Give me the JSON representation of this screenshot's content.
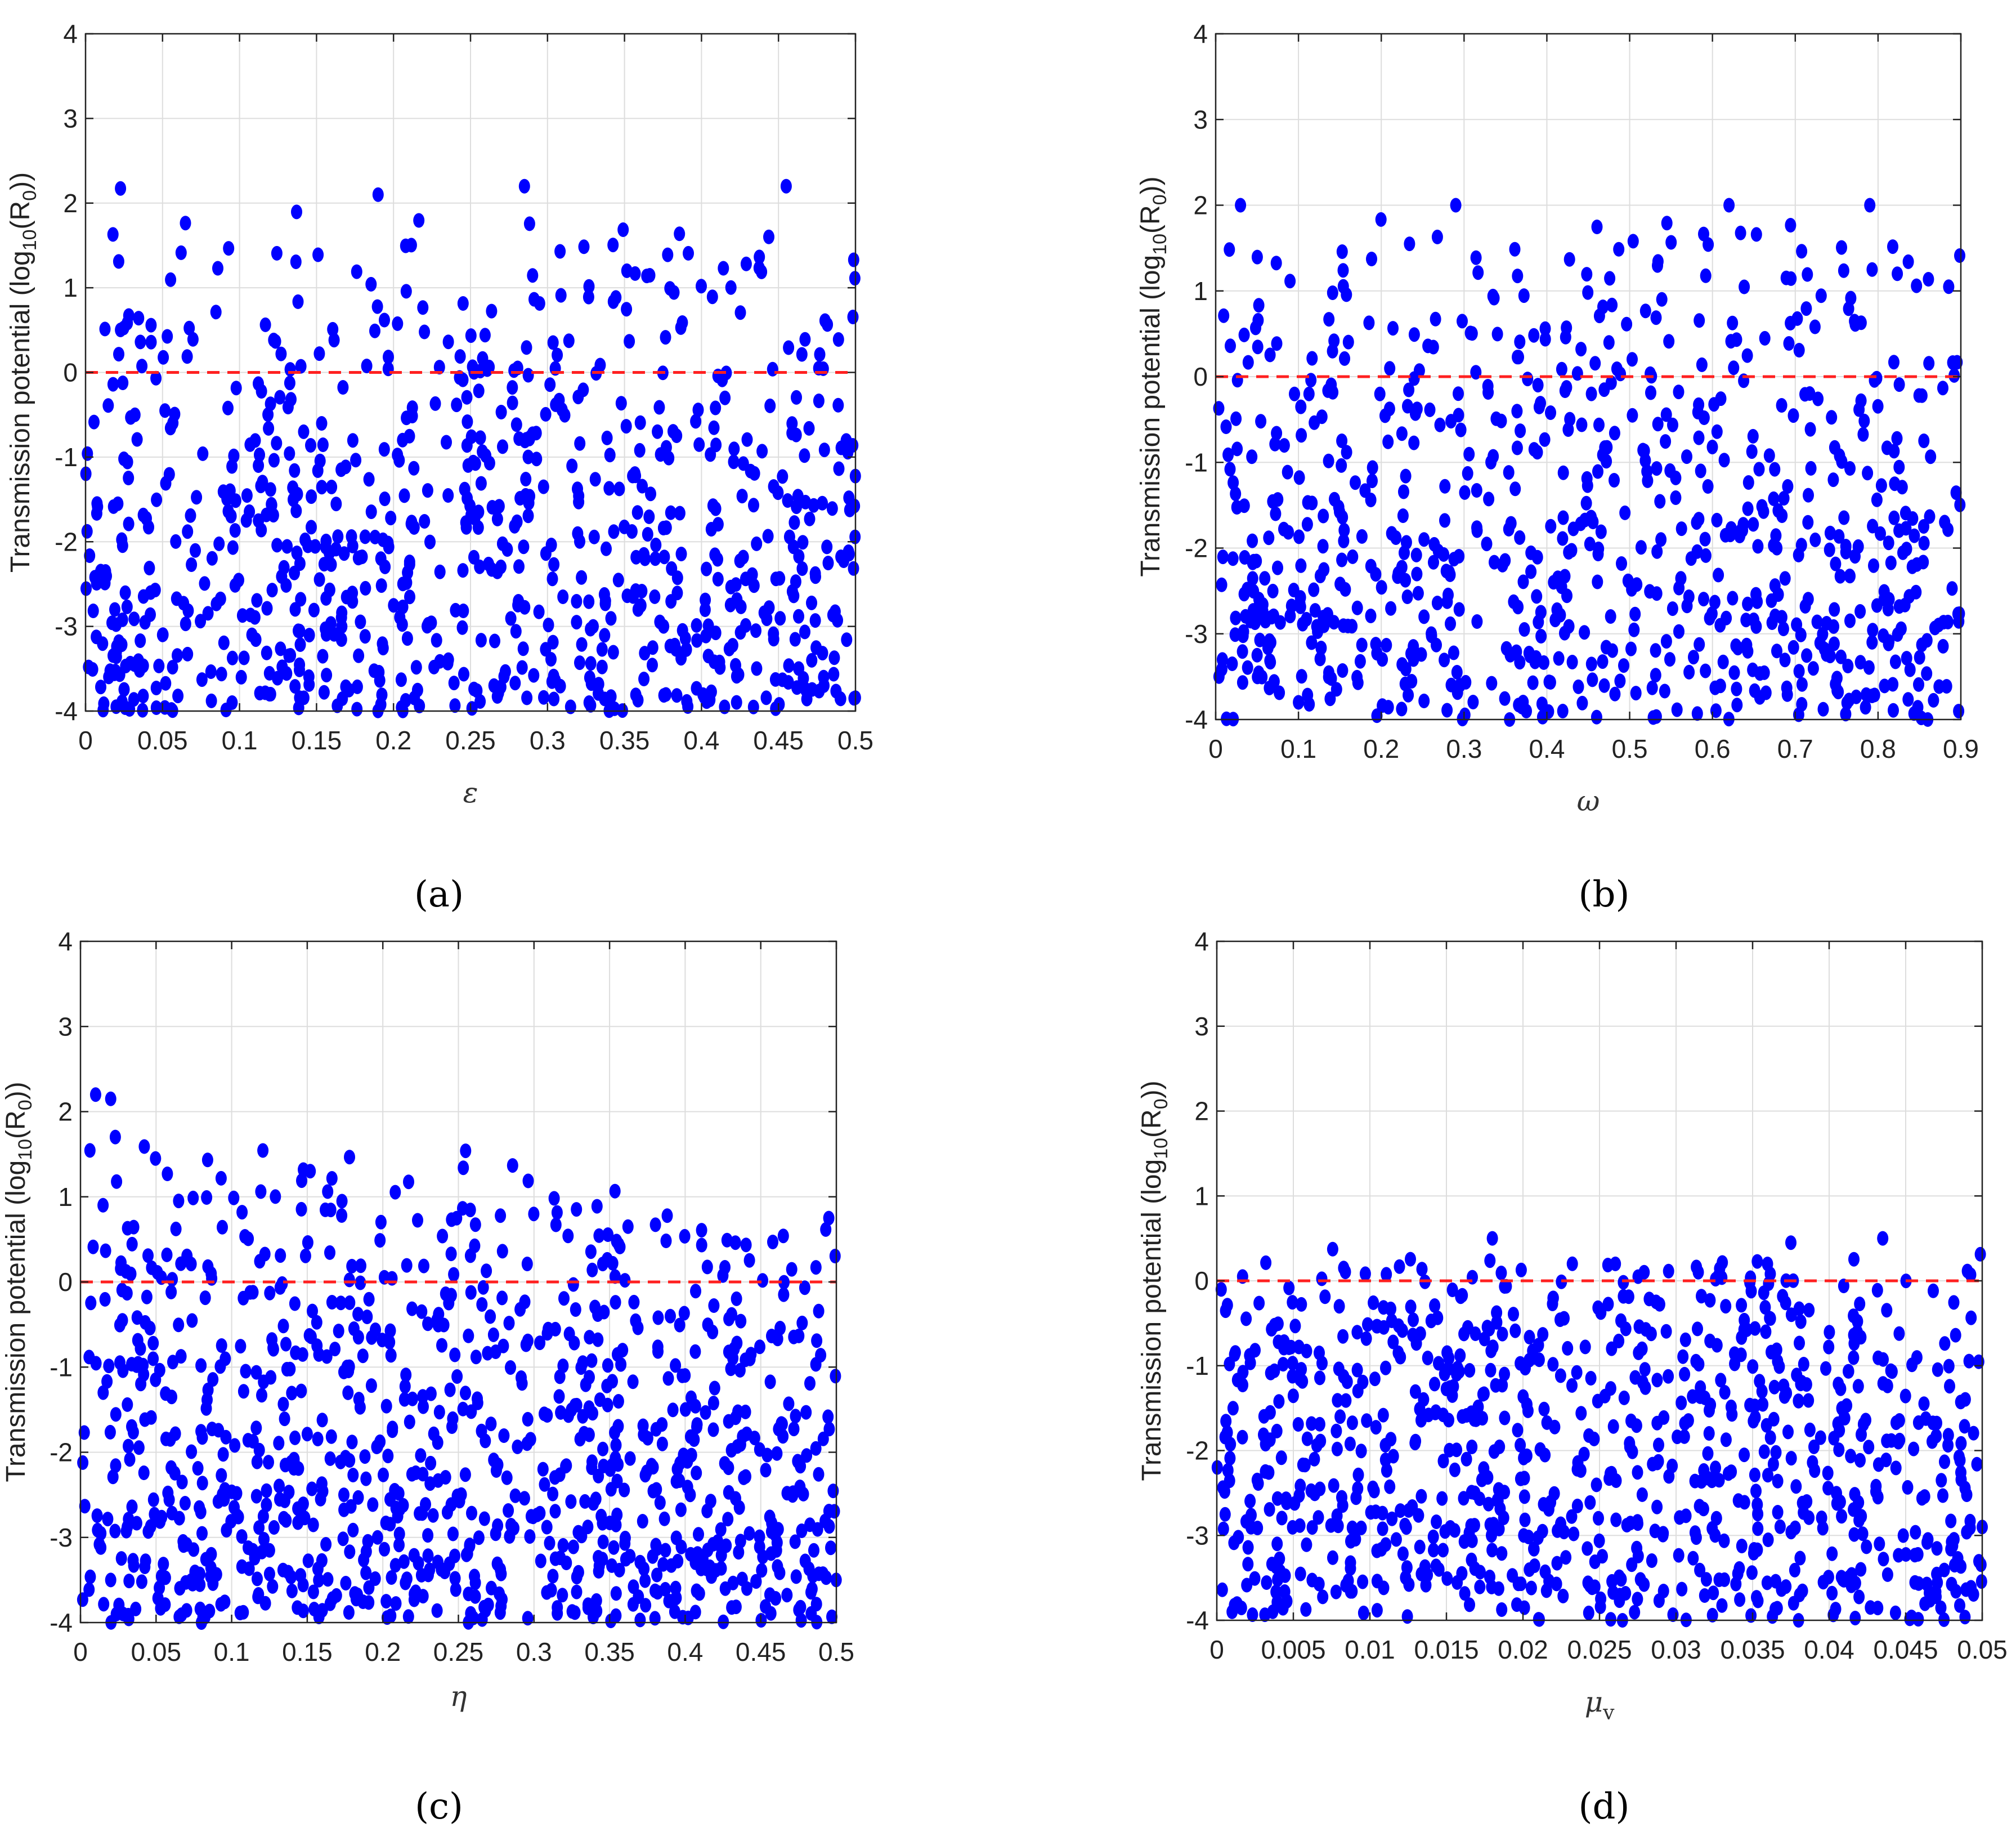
{
  "colors": {
    "points": "#0000ff",
    "threshold": "#ff2020",
    "grid": "#dddddd",
    "axes": "#222222"
  },
  "chart_data": [
    {
      "panel": "(a)",
      "type": "scatter",
      "title": "",
      "ylabel": "Transmission potential (log10(R0))",
      "ylabel_main": "Transmission potential (log",
      "ylabel_sub1": "10",
      "ylabel_mid": "(R",
      "ylabel_sub2": "0",
      "ylabel_end": "))",
      "xlabel": "ε",
      "xlabel_sub": "",
      "xlim": [
        0,
        0.5
      ],
      "ylim": [
        -4,
        4
      ],
      "xticks": [
        0,
        0.05,
        0.1,
        0.15,
        0.2,
        0.25,
        0.3,
        0.35,
        0.4,
        0.45,
        0.5
      ],
      "xtick_labels": [
        "0",
        "0.05",
        "0.1",
        "0.15",
        "0.2",
        "0.25",
        "0.3",
        "0.35",
        "0.4",
        "0.45",
        "0.5"
      ],
      "yticks": [
        -4,
        -3,
        -2,
        -1,
        0,
        1,
        2,
        3,
        4
      ],
      "ytick_labels": [
        "-4",
        "-3",
        "-2",
        "-1",
        "0",
        "1",
        "2",
        "3",
        "4"
      ],
      "grid": true,
      "reference_line": {
        "y": 0,
        "style": "dashed"
      },
      "sample": {
        "count": 850,
        "seed": 11,
        "upper": [
          2.05,
          2.05
        ],
        "upper_jitter": 0.15,
        "lower": -4.0,
        "power": 0.55
      },
      "points": [
        [
          0.19,
          2.1
        ],
        [
          0.285,
          2.2
        ],
        [
          0.455,
          2.2
        ],
        [
          0.315,
          -3.95
        ],
        [
          0.415,
          -3.95
        ],
        [
          0.02,
          -3.3
        ],
        [
          0.05,
          -3.1
        ],
        [
          0.31,
          -2.65
        ],
        [
          0.37,
          -2.2
        ]
      ]
    },
    {
      "panel": "(b)",
      "type": "scatter",
      "title": "",
      "ylabel": "Transmission potential (log10(R0))",
      "ylabel_main": "Transmission potential (log",
      "ylabel_sub1": "10",
      "ylabel_mid": "(R",
      "ylabel_sub2": "0",
      "ylabel_end": "))",
      "xlabel": "ω",
      "xlabel_sub": "",
      "xlim": [
        0,
        0.9
      ],
      "ylim": [
        -4,
        4
      ],
      "xticks": [
        0,
        0.1,
        0.2,
        0.3,
        0.4,
        0.5,
        0.6,
        0.7,
        0.8,
        0.9
      ],
      "xtick_labels": [
        "0",
        "0.1",
        "0.2",
        "0.3",
        "0.4",
        "0.5",
        "0.6",
        "0.7",
        "0.8",
        "0.9"
      ],
      "yticks": [
        -4,
        -3,
        -2,
        -1,
        0,
        1,
        2,
        3,
        4
      ],
      "ytick_labels": [
        "-4",
        "-3",
        "-2",
        "-1",
        "0",
        "1",
        "2",
        "3",
        "4"
      ],
      "grid": true,
      "reference_line": {
        "y": 0,
        "style": "dashed"
      },
      "sample": {
        "count": 800,
        "seed": 23,
        "upper": [
          1.95,
          1.95
        ],
        "upper_jitter": 0.1,
        "lower": -4.0,
        "power": 0.6
      },
      "points": [
        [
          0.03,
          2.0
        ],
        [
          0.29,
          2.0
        ],
        [
          0.62,
          2.0
        ],
        [
          0.79,
          2.0
        ],
        [
          0.355,
          -4.0
        ],
        [
          0.86,
          -4.0
        ],
        [
          0.02,
          -3.35
        ],
        [
          0.05,
          -3.25
        ],
        [
          0.1,
          -3.8
        ]
      ]
    },
    {
      "panel": "(c)",
      "type": "scatter",
      "title": "",
      "ylabel": "Transmission potential (log10(R0))",
      "ylabel_main": "Transmission potential (log",
      "ylabel_sub1": "10",
      "ylabel_mid": "(R",
      "ylabel_sub2": "0",
      "ylabel_end": "))",
      "xlabel": "η",
      "xlabel_sub": "",
      "xlim": [
        0,
        0.5
      ],
      "ylim": [
        -4,
        4
      ],
      "xticks": [
        0,
        0.05,
        0.1,
        0.15,
        0.2,
        0.25,
        0.3,
        0.35,
        0.4,
        0.45,
        0.5
      ],
      "xtick_labels": [
        "0",
        "0.05",
        "0.1",
        "0.15",
        "0.2",
        "0.25",
        "0.3",
        "0.35",
        "0.4",
        "0.45",
        "0.5"
      ],
      "yticks": [
        -4,
        -3,
        -2,
        -1,
        0,
        1,
        2,
        3,
        4
      ],
      "ytick_labels": [
        "-4",
        "-3",
        "-2",
        "-1",
        "0",
        "1",
        "2",
        "3",
        "4"
      ],
      "grid": true,
      "reference_line": {
        "y": 0,
        "style": "dashed"
      },
      "sample": {
        "count": 1000,
        "seed": 37,
        "upper": [
          2.15,
          0.75
        ],
        "upper_jitter": 0.08,
        "lower": -4.0,
        "power": 0.55
      },
      "points": [
        [
          0.01,
          2.2
        ],
        [
          0.02,
          2.15
        ],
        [
          0.08,
          -4.0
        ],
        [
          0.38,
          -3.95
        ],
        [
          0.02,
          -3.5
        ],
        [
          0.015,
          -1.3
        ],
        [
          0.495,
          0.75
        ]
      ]
    },
    {
      "panel": "(d)",
      "type": "scatter",
      "title": "",
      "ylabel": "Transmission potential (log10(R0))",
      "ylabel_main": "Transmission potential (log",
      "ylabel_sub1": "10",
      "ylabel_mid": "(R",
      "ylabel_sub2": "0",
      "ylabel_end": "))",
      "xlabel": "μv",
      "xlabel_main": "μ",
      "xlabel_sub": "v",
      "xlim": [
        0,
        0.05
      ],
      "ylim": [
        -4,
        4
      ],
      "xticks": [
        0,
        0.005,
        0.01,
        0.015,
        0.02,
        0.025,
        0.03,
        0.035,
        0.04,
        0.045,
        0.05
      ],
      "xtick_labels": [
        "0",
        "0.005",
        "0.01",
        "0.015",
        "0.02",
        "0.025",
        "0.03",
        "0.035",
        "0.04",
        "0.045",
        "0.05"
      ],
      "yticks": [
        -4,
        -3,
        -2,
        -1,
        0,
        1,
        2,
        3,
        4
      ],
      "ytick_labels": [
        "-4",
        "-3",
        "-2",
        "-1",
        "0",
        "1",
        "2",
        "3",
        "4"
      ],
      "grid": true,
      "reference_line": {
        "y": 0,
        "style": "dashed"
      },
      "sample": {
        "count": 900,
        "seed": 53,
        "upper": [
          0.3,
          0.3
        ],
        "upper_jitter": 0.15,
        "lower": -4.0,
        "power": 0.85
      },
      "points": [
        [
          0.018,
          0.5
        ],
        [
          0.0435,
          0.5
        ],
        [
          0.0375,
          0.45
        ],
        [
          0.0265,
          -4.0
        ],
        [
          0.038,
          -4.0
        ],
        [
          0.001,
          -3.9
        ]
      ]
    }
  ]
}
